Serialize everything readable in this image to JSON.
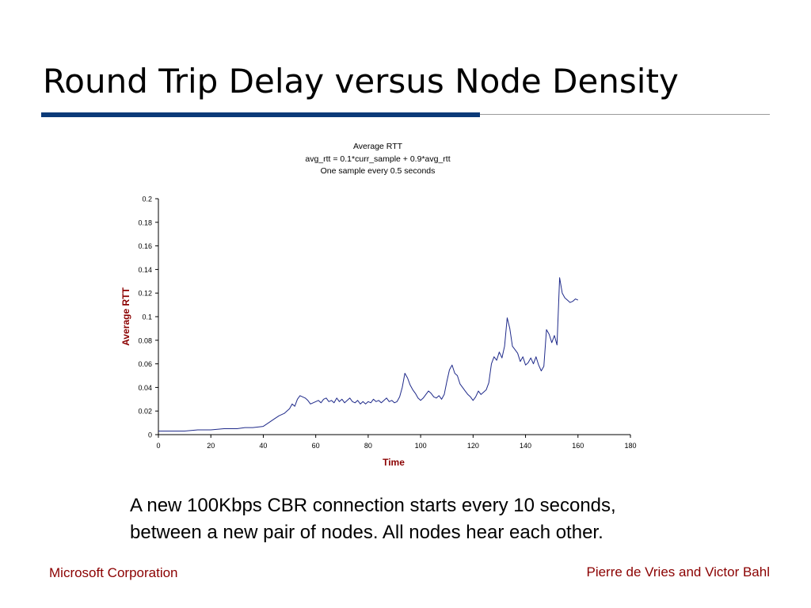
{
  "slide": {
    "title": "Round Trip Delay versus Node Density",
    "caption_line1": "A new 100Kbps CBR connection starts every 10 seconds,",
    "caption_line2": "between a new pair of nodes. All nodes hear each other.",
    "footer_left": "Microsoft Corporation",
    "footer_right": "Pierre de Vries and Victor Bahl"
  },
  "colors": {
    "title_rule": "#0b3a78",
    "series_line": "#1f2a8a",
    "axis_label": "#8b0000",
    "footer_text": "#8b0000"
  },
  "chart_data": {
    "type": "line",
    "title_lines": [
      "Average RTT",
      "avg_rtt = 0.1*curr_sample + 0.9*avg_rtt",
      "One sample every 0.5 seconds"
    ],
    "xlabel": "Time",
    "ylabel": "Average RTT",
    "xlim": [
      0,
      180
    ],
    "ylim": [
      0,
      0.2
    ],
    "x_ticks": [
      0,
      20,
      40,
      60,
      80,
      100,
      120,
      140,
      160,
      180
    ],
    "y_ticks": [
      0,
      0.02,
      0.04,
      0.06,
      0.08,
      0.1,
      0.12,
      0.14,
      0.16,
      0.18,
      0.2
    ],
    "x_tick_labels": [
      "0",
      "20",
      "40",
      "60",
      "80",
      "100",
      "120",
      "140",
      "160",
      "180"
    ],
    "y_tick_labels": [
      "0",
      "0.02",
      "0.04",
      "0.06",
      "0.08",
      "0.1",
      "0.12",
      "0.14",
      "0.16",
      "0.18",
      "0.2"
    ],
    "grid": false,
    "legend": "none",
    "series": [
      {
        "x": [
          0,
          5,
          10,
          15,
          20,
          25,
          30,
          33,
          36,
          40,
          42,
          44,
          46,
          48,
          50,
          51,
          52,
          53,
          54,
          55,
          56,
          57,
          58,
          59,
          60,
          61,
          62,
          63,
          64,
          65,
          66,
          67,
          68,
          69,
          70,
          71,
          72,
          73,
          74,
          75,
          76,
          77,
          78,
          79,
          80,
          81,
          82,
          83,
          84,
          85,
          86,
          87,
          88,
          89,
          90,
          91,
          92,
          93,
          94,
          95,
          96,
          97,
          98,
          99,
          100,
          101,
          102,
          103,
          104,
          105,
          106,
          107,
          108,
          109,
          110,
          111,
          112,
          113,
          114,
          115,
          116,
          117,
          118,
          119,
          120,
          121,
          122,
          123,
          124,
          125,
          126,
          127,
          128,
          129,
          130,
          131,
          132,
          133,
          134,
          135,
          136,
          137,
          138,
          139,
          140,
          141,
          142,
          143,
          144,
          145,
          146,
          147,
          148,
          149,
          150,
          151,
          152,
          153,
          154,
          155,
          156,
          157,
          158,
          159,
          160
        ],
        "y": [
          0.003,
          0.003,
          0.003,
          0.004,
          0.004,
          0.005,
          0.005,
          0.006,
          0.006,
          0.007,
          0.01,
          0.013,
          0.016,
          0.018,
          0.022,
          0.026,
          0.024,
          0.03,
          0.033,
          0.032,
          0.031,
          0.029,
          0.026,
          0.027,
          0.028,
          0.029,
          0.027,
          0.03,
          0.031,
          0.028,
          0.029,
          0.027,
          0.031,
          0.028,
          0.03,
          0.027,
          0.029,
          0.031,
          0.028,
          0.027,
          0.029,
          0.026,
          0.028,
          0.026,
          0.028,
          0.027,
          0.03,
          0.028,
          0.029,
          0.027,
          0.029,
          0.031,
          0.028,
          0.029,
          0.027,
          0.028,
          0.032,
          0.04,
          0.052,
          0.048,
          0.042,
          0.038,
          0.035,
          0.031,
          0.029,
          0.031,
          0.034,
          0.037,
          0.035,
          0.032,
          0.031,
          0.033,
          0.03,
          0.034,
          0.045,
          0.055,
          0.059,
          0.052,
          0.05,
          0.043,
          0.04,
          0.037,
          0.034,
          0.032,
          0.029,
          0.032,
          0.037,
          0.034,
          0.036,
          0.038,
          0.044,
          0.06,
          0.066,
          0.063,
          0.07,
          0.065,
          0.075,
          0.099,
          0.09,
          0.075,
          0.072,
          0.069,
          0.062,
          0.066,
          0.059,
          0.061,
          0.065,
          0.06,
          0.066,
          0.059,
          0.054,
          0.058,
          0.089,
          0.085,
          0.078,
          0.084,
          0.076,
          0.133,
          0.12,
          0.116,
          0.114,
          0.112,
          0.113,
          0.115,
          0.114
        ]
      }
    ]
  }
}
